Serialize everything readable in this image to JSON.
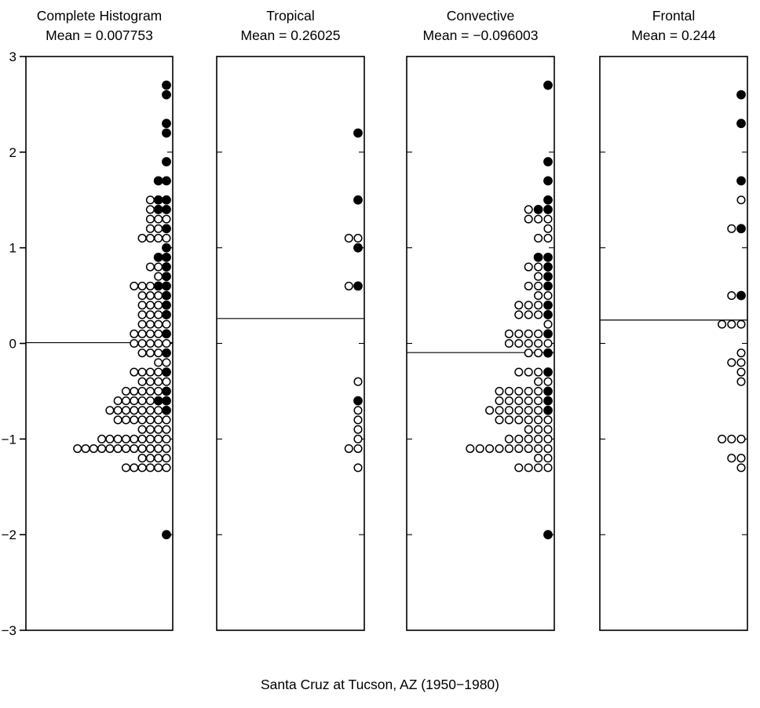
{
  "chart_data": {
    "type": "dot-histogram",
    "orientation": "vertical-value-horizontal-count",
    "ylim": [
      -3,
      3
    ],
    "bin_width": 0.1,
    "grid": false,
    "caption": "Santa Cruz at Tucson, AZ (1950−1980)",
    "yticks": {
      "values": [
        3,
        2,
        1,
        0,
        -1,
        -2,
        -3
      ],
      "labels": [
        "3",
        "2",
        "1",
        "0",
        "−1",
        "−2",
        "−3"
      ]
    },
    "dot_legend": {
      "O": "open-circle",
      "F": "filled-circle"
    },
    "panels": [
      {
        "title": "Complete Histogram",
        "mean_label": "Mean = 0.007753",
        "mean": 0.007753,
        "rows": [
          {
            "y": 2.7,
            "dots": "F"
          },
          {
            "y": 2.6,
            "dots": "F"
          },
          {
            "y": 2.3,
            "dots": "F"
          },
          {
            "y": 2.2,
            "dots": "F"
          },
          {
            "y": 1.9,
            "dots": "F"
          },
          {
            "y": 1.7,
            "dots": "FF"
          },
          {
            "y": 1.5,
            "dots": "OFF"
          },
          {
            "y": 1.4,
            "dots": "OFF"
          },
          {
            "y": 1.3,
            "dots": "OOO"
          },
          {
            "y": 1.2,
            "dots": "OOF"
          },
          {
            "y": 1.1,
            "dots": "OOOO"
          },
          {
            "y": 1.0,
            "dots": "F"
          },
          {
            "y": 0.9,
            "dots": "FF"
          },
          {
            "y": 0.8,
            "dots": "OOF"
          },
          {
            "y": 0.7,
            "dots": "OF"
          },
          {
            "y": 0.6,
            "dots": "OOOFF"
          },
          {
            "y": 0.5,
            "dots": "OOOF"
          },
          {
            "y": 0.4,
            "dots": "OOOF"
          },
          {
            "y": 0.3,
            "dots": "OOOF"
          },
          {
            "y": 0.2,
            "dots": "OOOO"
          },
          {
            "y": 0.1,
            "dots": "OOOOF"
          },
          {
            "y": 0.0,
            "dots": "OOOOO"
          },
          {
            "y": -0.1,
            "dots": "OOOF"
          },
          {
            "y": -0.2,
            "dots": "OO"
          },
          {
            "y": -0.3,
            "dots": "OOOOF"
          },
          {
            "y": -0.4,
            "dots": "OOOO"
          },
          {
            "y": -0.5,
            "dots": "OOOOOF"
          },
          {
            "y": -0.6,
            "dots": "OOOOOFF"
          },
          {
            "y": -0.7,
            "dots": "OOOOOOOF"
          },
          {
            "y": -0.8,
            "dots": "OOOOOOO"
          },
          {
            "y": -0.9,
            "dots": "OOOO"
          },
          {
            "y": -1.0,
            "dots": "OOOOOOOOO"
          },
          {
            "y": -1.1,
            "dots": "OOOOOOOOOOOO"
          },
          {
            "y": -1.2,
            "dots": "OOOO"
          },
          {
            "y": -1.3,
            "dots": "OOOOOO"
          },
          {
            "y": -2.0,
            "dots": "F"
          }
        ]
      },
      {
        "title": "Tropical",
        "mean_label": "Mean = 0.26025",
        "mean": 0.26025,
        "rows": [
          {
            "y": 2.2,
            "dots": "F"
          },
          {
            "y": 1.5,
            "dots": "F"
          },
          {
            "y": 1.1,
            "dots": "OO"
          },
          {
            "y": 1.0,
            "dots": "F"
          },
          {
            "y": 0.6,
            "dots": "OF"
          },
          {
            "y": -0.4,
            "dots": "O"
          },
          {
            "y": -0.6,
            "dots": "F"
          },
          {
            "y": -0.7,
            "dots": "O"
          },
          {
            "y": -0.8,
            "dots": "O"
          },
          {
            "y": -0.9,
            "dots": "O"
          },
          {
            "y": -1.0,
            "dots": "O"
          },
          {
            "y": -1.1,
            "dots": "OO"
          },
          {
            "y": -1.3,
            "dots": "O"
          }
        ]
      },
      {
        "title": "Convective",
        "mean_label": "Mean = −0.096003",
        "mean": -0.096003,
        "rows": [
          {
            "y": 2.7,
            "dots": "F"
          },
          {
            "y": 1.9,
            "dots": "F"
          },
          {
            "y": 1.7,
            "dots": "F"
          },
          {
            "y": 1.5,
            "dots": "F"
          },
          {
            "y": 1.4,
            "dots": "OFF"
          },
          {
            "y": 1.3,
            "dots": "OOO"
          },
          {
            "y": 1.2,
            "dots": "O"
          },
          {
            "y": 1.1,
            "dots": "OO"
          },
          {
            "y": 0.9,
            "dots": "FF"
          },
          {
            "y": 0.8,
            "dots": "OOF"
          },
          {
            "y": 0.7,
            "dots": "OF"
          },
          {
            "y": 0.6,
            "dots": "OOF"
          },
          {
            "y": 0.5,
            "dots": "OO"
          },
          {
            "y": 0.4,
            "dots": "OOOF"
          },
          {
            "y": 0.3,
            "dots": "OOOF"
          },
          {
            "y": 0.2,
            "dots": "O"
          },
          {
            "y": 0.1,
            "dots": "OOOOF"
          },
          {
            "y": 0.0,
            "dots": "OOOOO"
          },
          {
            "y": -0.1,
            "dots": "OOF"
          },
          {
            "y": -0.3,
            "dots": "OOOF"
          },
          {
            "y": -0.4,
            "dots": "OO"
          },
          {
            "y": -0.5,
            "dots": "OOOOOF"
          },
          {
            "y": -0.6,
            "dots": "OOOOOF"
          },
          {
            "y": -0.7,
            "dots": "OOOOOOF"
          },
          {
            "y": -0.8,
            "dots": "OOOOOO"
          },
          {
            "y": -0.9,
            "dots": "OOO"
          },
          {
            "y": -1.0,
            "dots": "OOOOO"
          },
          {
            "y": -1.1,
            "dots": "OOOOOOOOO"
          },
          {
            "y": -1.2,
            "dots": "OO"
          },
          {
            "y": -1.3,
            "dots": "OOOO"
          },
          {
            "y": -2.0,
            "dots": "F"
          }
        ]
      },
      {
        "title": "Frontal",
        "mean_label": "Mean = 0.244",
        "mean": 0.244,
        "rows": [
          {
            "y": 2.6,
            "dots": "F"
          },
          {
            "y": 2.3,
            "dots": "F"
          },
          {
            "y": 1.7,
            "dots": "F"
          },
          {
            "y": 1.5,
            "dots": "O"
          },
          {
            "y": 1.2,
            "dots": "OF"
          },
          {
            "y": 0.5,
            "dots": "OF"
          },
          {
            "y": 0.2,
            "dots": "OOO"
          },
          {
            "y": -0.1,
            "dots": "O"
          },
          {
            "y": -0.2,
            "dots": "OO"
          },
          {
            "y": -0.3,
            "dots": "O"
          },
          {
            "y": -0.4,
            "dots": "O"
          },
          {
            "y": -1.0,
            "dots": "OOO"
          },
          {
            "y": -1.2,
            "dots": "OO"
          },
          {
            "y": -1.3,
            "dots": "O"
          }
        ]
      }
    ]
  }
}
